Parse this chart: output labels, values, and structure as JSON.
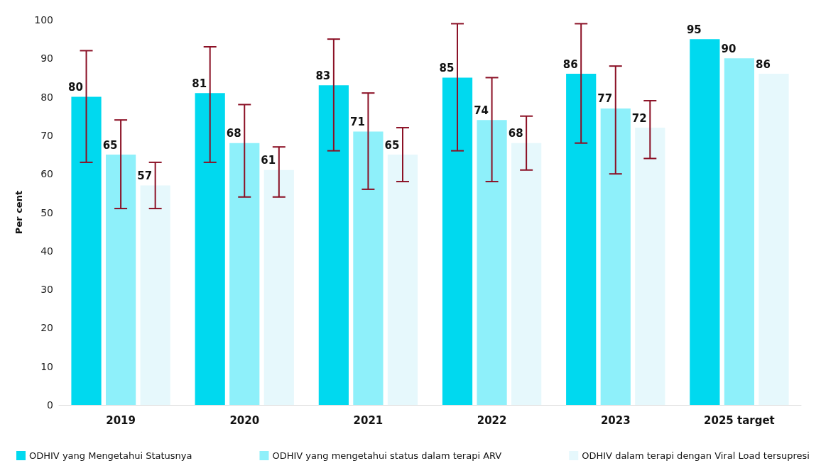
{
  "chart_data": {
    "type": "bar",
    "ylabel": "Per cent",
    "categories": [
      "2019",
      "2020",
      "2021",
      "2022",
      "2023",
      "2025 target"
    ],
    "series": [
      {
        "name": "ODHIV yang Mengetahui Statusnya",
        "color": "#00d9ef",
        "values": [
          80,
          81,
          83,
          85,
          86,
          95
        ],
        "errors": [
          [
            63,
            92
          ],
          [
            63,
            93
          ],
          [
            66,
            95
          ],
          [
            66,
            99
          ],
          [
            68,
            99
          ],
          null
        ]
      },
      {
        "name": "ODHIV yang mengetahui status dalam terapi ARV",
        "color": "#8ef0fa",
        "values": [
          65,
          68,
          71,
          74,
          77,
          90
        ],
        "errors": [
          [
            51,
            74
          ],
          [
            54,
            78
          ],
          [
            56,
            81
          ],
          [
            58,
            85
          ],
          [
            60,
            88
          ],
          null
        ]
      },
      {
        "name": "ODHIV dalam terapi dengan Viral Load tersupresi",
        "color": "#e6f8fc",
        "values": [
          57,
          61,
          65,
          68,
          72,
          86
        ],
        "errors": [
          [
            51,
            63
          ],
          [
            54,
            67
          ],
          [
            58,
            72
          ],
          [
            61,
            75
          ],
          [
            64,
            79
          ],
          null
        ]
      }
    ],
    "ylim": [
      0,
      100
    ],
    "yticks": [
      0,
      10,
      20,
      30,
      40,
      50,
      60,
      70,
      80,
      90,
      100
    ],
    "grid": false,
    "legend": "bottom",
    "data_labels": true
  }
}
